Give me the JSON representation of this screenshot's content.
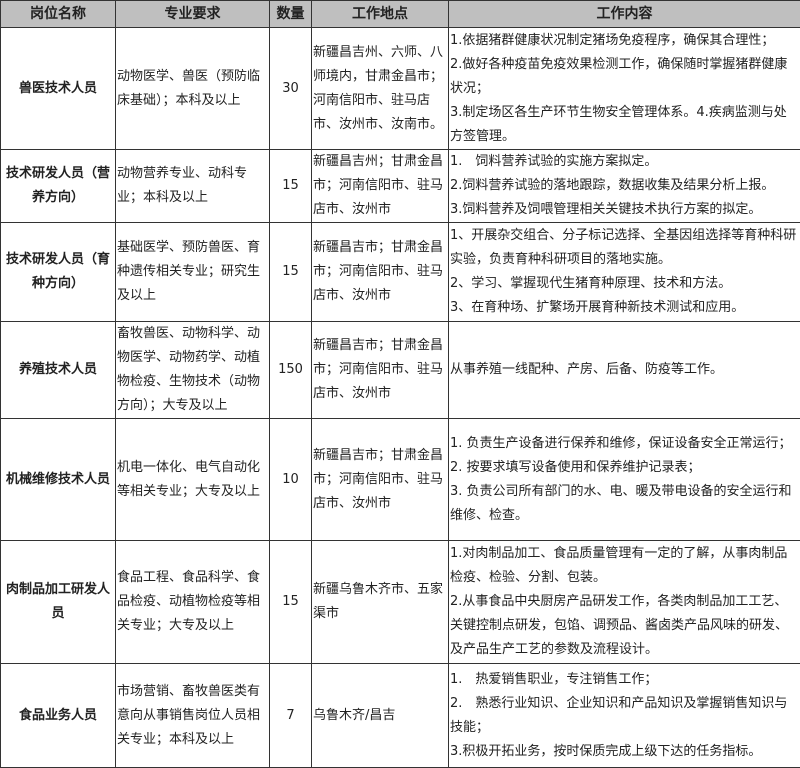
{
  "header": {
    "name": "岗位名称",
    "major": "专业要求",
    "count": "数量",
    "location": "工作地点",
    "content": "工作内容",
    "bg": "#bfbfbf"
  },
  "rows": [
    {
      "name": "兽医技术人员",
      "major": "动物医学、兽医（预防临床基础）；本科及以上",
      "count": "30",
      "location": "新疆昌吉州、六师、八师境内，甘肃金昌市；河南信阳市、驻马店市、汝州市、汝南市。",
      "content": [
        "1.依据猪群健康状况制定猪场免疫程序，确保其合理性；",
        "2.做好各种疫苗免疫效果检测工作，确保随时掌握猪群健康状况；",
        "3.制定场区各生产环节生物安全管理体系。4.疾病监测与处方签管理。"
      ]
    },
    {
      "name": "技术研发人员（营养方向）",
      "major": "动物营养专业、动科专业；本科及以上",
      "count": "15",
      "location": "新疆昌吉州；甘肃金昌市；河南信阳市、驻马店市、汝州市",
      "content": [
        "1.　饲料营养试验的实施方案拟定。",
        "2.饲料营养试验的落地跟踪，数据收集及结果分析上报。",
        "3.饲料营养及饲喂管理相关关键技术执行方案的拟定。"
      ]
    },
    {
      "name": "技术研发人员（育种方向）",
      "major": "基础医学、预防兽医、育种遗传相关专业；研究生及以上",
      "count": "15",
      "location": "新疆昌吉市；甘肃金昌市；河南信阳市、驻马店市、汝州市",
      "content": [
        "1、开展杂交组合、分子标记选择、全基因组选择等育种科研实验，负责育种科研项目的落地实施。",
        "2、学习、掌握现代生猪育种原理、技术和方法。",
        "3、在育种场、扩繁场开展育种新技术测试和应用。"
      ]
    },
    {
      "name": "养殖技术人员",
      "major": "畜牧兽医、动物科学、动物医学、动物药学、动植物检疫、生物技术（动物方向）；大专及以上",
      "count": "150",
      "location": "新疆昌吉市；甘肃金昌市；河南信阳市、驻马店市、汝州市",
      "content": [
        "从事养殖一线配种、产房、后备、防疫等工作。"
      ]
    },
    {
      "name": "机械维修技术人员",
      "major": "机电一体化、电气自动化等相关专业；大专及以上",
      "count": "10",
      "location": "新疆昌吉市；甘肃金昌市；河南信阳市、驻马店市、汝州市",
      "content": [
        "1. 负责生产设备进行保养和维修，保证设备安全正常运行；",
        "2. 按要求填写设备使用和保养维护记录表；",
        "3. 负责公司所有部门的水、电、暖及带电设备的安全运行和维修、检查。"
      ]
    },
    {
      "name": "肉制品加工研发人员",
      "major": "食品工程、食品科学、食品检疫、动植物检疫等相关专业；大专及以上",
      "count": "15",
      "location": "新疆乌鲁木齐市、五家渠市",
      "content": [
        "1.对肉制品加工、食品质量管理有一定的了解，从事肉制品检疫、检验、分割、包装。",
        "2.从事食品中央厨房产品研发工作，各类肉制品加工工艺、关键控制点研发，包馅、调预品、酱卤类产品风味的研发、及产品生产工艺的参数及流程设计。"
      ]
    },
    {
      "name": "食品业务人员",
      "major": "市场营销、畜牧兽医类有意向从事销售岗位人员相关专业；本科及以上",
      "count": "7",
      "location": "乌鲁木齐/昌吉",
      "content": [
        "1.　热爱销售职业，专注销售工作；",
        "2.　熟悉行业知识、企业知识和产品知识及掌握销售知识与技能；",
        "3.积极开拓业务，按时保质完成上级下达的任务指标。"
      ]
    }
  ]
}
